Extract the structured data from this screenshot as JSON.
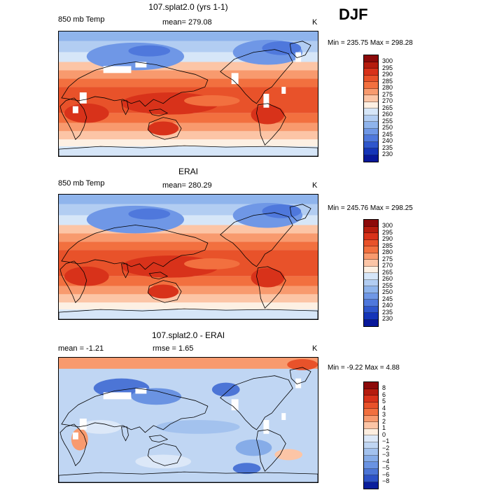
{
  "season": "DJF",
  "panels": [
    {
      "title": "107.splat2.0 (yrs 1-1)",
      "sub_left": "850 mb Temp",
      "sub_mid": "mean= 279.08",
      "units": "K",
      "minmax": "Min = 235.75 Max = 298.28",
      "colorbar_labels": [
        "300",
        "295",
        "290",
        "285",
        "280",
        "275",
        "270",
        "265",
        "260",
        "255",
        "250",
        "245",
        "240",
        "235",
        "230"
      ],
      "colorbar_colors": [
        "#8c0a0a",
        "#b51c0e",
        "#d8321a",
        "#e8522a",
        "#f2703f",
        "#f89a6e",
        "#fcc5a6",
        "#fdf0e3",
        "#d6e6f8",
        "#b2cdf2",
        "#8fb4ec",
        "#6f97e6",
        "#4f78dc",
        "#2f56cc",
        "#1535b8",
        "#08189a"
      ],
      "map_kind": "temp",
      "has_missing": true
    },
    {
      "title": "ERAI",
      "sub_left": "850 mb Temp",
      "sub_mid": "mean= 280.29",
      "units": "K",
      "minmax": "Min = 245.76 Max = 298.25",
      "colorbar_labels": [
        "300",
        "295",
        "290",
        "285",
        "280",
        "275",
        "270",
        "265",
        "260",
        "255",
        "250",
        "245",
        "240",
        "235",
        "230"
      ],
      "colorbar_colors": [
        "#8c0a0a",
        "#b51c0e",
        "#d8321a",
        "#e8522a",
        "#f2703f",
        "#f89a6e",
        "#fcc5a6",
        "#fdf0e3",
        "#d6e6f8",
        "#b2cdf2",
        "#8fb4ec",
        "#6f97e6",
        "#4f78dc",
        "#2f56cc",
        "#1535b8",
        "#08189a"
      ],
      "map_kind": "temp",
      "has_missing": false
    },
    {
      "title": "107.splat2.0 - ERAI",
      "sub_left": "mean =   -1.21",
      "sub_mid": "rmse =    1.65",
      "units": "K",
      "minmax": "Min =   -9.22 Max =    4.88",
      "colorbar_labels": [
        "8",
        "6",
        "5",
        "4",
        "3",
        "2",
        "1",
        "0",
        "−1",
        "−2",
        "−3",
        "−4",
        "−5",
        "−6",
        "−8"
      ],
      "colorbar_colors": [
        "#8c0a0a",
        "#b51c0e",
        "#d8321a",
        "#e8522a",
        "#f2703f",
        "#f89a6e",
        "#fcc5a6",
        "#fdeee0",
        "#dce8f8",
        "#c0d6f3",
        "#a3c2ee",
        "#86ace8",
        "#6a93e2",
        "#4c75d6",
        "#2d52c6",
        "#0a1e9c"
      ],
      "map_kind": "diff",
      "has_missing": true
    }
  ]
}
